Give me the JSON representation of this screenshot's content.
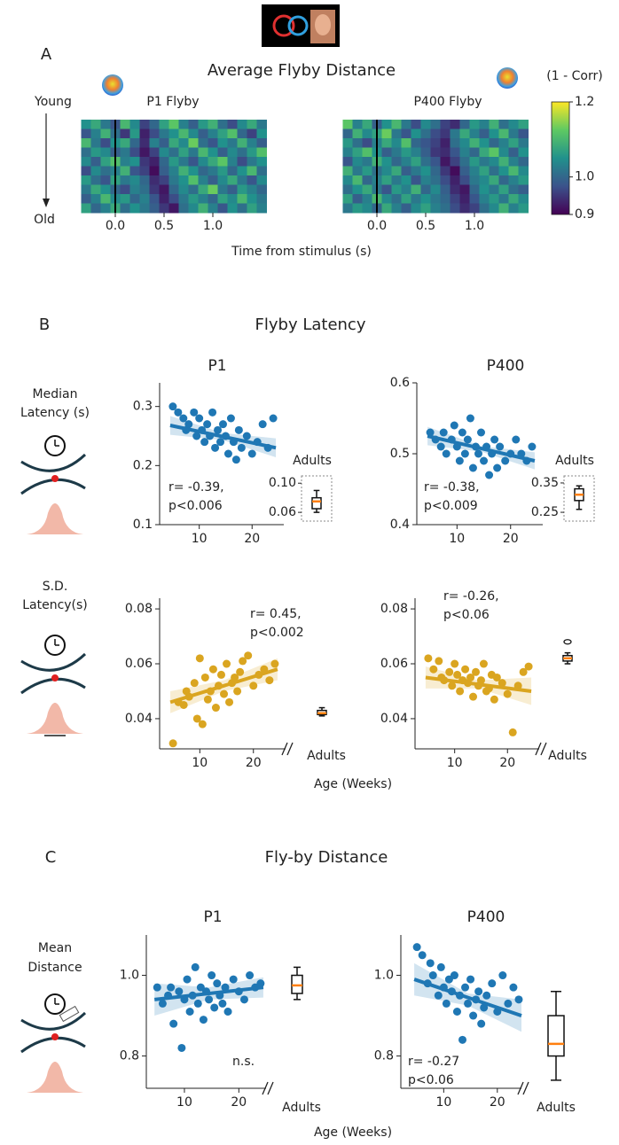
{
  "figure": {
    "panels": [
      {
        "letter": "A",
        "title": "Average  Flyby Distance",
        "xlabel": "Time from stimulus (s)"
      },
      {
        "letter": "B",
        "title": "Flyby Latency",
        "xlabel": "Age (Weeks)"
      },
      {
        "letter": "C",
        "title": "Fly-by Distance",
        "xlabel": "Age (Weeks)"
      }
    ],
    "row_labels": [
      [
        "Median",
        "Latency (s)"
      ],
      [
        "S.D.",
        "Latency(s)"
      ],
      [
        "Mean",
        "Distance"
      ]
    ]
  },
  "chart_data": [
    {
      "type": "heatmap",
      "title": "P1 Flyby",
      "row_label_top": "Young",
      "row_label_bottom": "Old",
      "x": [
        -0.3,
        -0.2,
        -0.1,
        0,
        0.1,
        0.2,
        0.3,
        0.4,
        0.5,
        0.6,
        0.7,
        0.8,
        0.9,
        1.0,
        1.1,
        1.2,
        1.3,
        1.4,
        1.5
      ],
      "xlim": [
        -0.35,
        1.55
      ],
      "xticks": [
        {
          "value": 0,
          "label": "0.0"
        },
        0.5,
        {
          "value": 1,
          "label": "1.0"
        }
      ],
      "vline": 0,
      "zlim": [
        0.9,
        1.2
      ],
      "z": [
        [
          1.05,
          1.08,
          1.02,
          0.98,
          1.1,
          1.04,
          0.96,
          1.0,
          1.07,
          1.12,
          1.03,
          0.99,
          1.06,
          1.09,
          1.01,
          0.97,
          1.04,
          1.08,
          1.02
        ],
        [
          0.98,
          1.03,
          1.09,
          1.01,
          0.95,
          1.06,
          0.93,
          0.97,
          1.02,
          1.05,
          1.1,
          1.04,
          0.99,
          1.03,
          1.07,
          1.11,
          1.0,
          0.96,
          1.05
        ],
        [
          1.1,
          1.02,
          0.97,
          1.05,
          1.08,
          1.0,
          0.94,
          1.03,
          0.99,
          1.08,
          1.04,
          1.13,
          1.01,
          0.98,
          1.05,
          1.02,
          1.09,
          1.03,
          0.99
        ],
        [
          1.01,
          1.06,
          1.04,
          0.99,
          1.02,
          0.97,
          0.92,
          0.96,
          1.04,
          1.01,
          1.07,
          1.02,
          1.1,
          1.05,
          0.99,
          1.04,
          1.01,
          1.06,
          1.11
        ],
        [
          1.04,
          0.99,
          1.07,
          1.11,
          1.03,
          1.05,
          0.95,
          0.93,
          1.0,
          1.06,
          1.02,
          0.98,
          1.04,
          1.08,
          1.12,
          1.03,
          0.97,
          1.02,
          1.05
        ],
        [
          0.97,
          1.04,
          1.01,
          1.03,
          1.09,
          0.98,
          0.96,
          0.91,
          0.99,
          1.03,
          1.09,
          1.05,
          1.0,
          1.02,
          1.06,
          1.0,
          1.05,
          1.1,
          1.01
        ],
        [
          1.06,
          1.01,
          0.98,
          1.07,
          1.02,
          1.04,
          1.0,
          0.94,
          0.96,
          1.02,
          1.05,
          1.11,
          1.03,
          0.99,
          1.04,
          1.08,
          1.02,
          0.98,
          1.04
        ],
        [
          1.02,
          1.08,
          1.05,
          1.0,
          0.97,
          1.03,
          1.01,
          0.95,
          0.92,
          1.0,
          1.04,
          1.01,
          1.08,
          1.13,
          1.02,
          0.99,
          1.06,
          1.03,
          1.0
        ],
        [
          0.99,
          1.03,
          1.1,
          1.04,
          1.06,
          1.0,
          1.03,
          0.98,
          0.93,
          0.97,
          1.02,
          1.06,
          1.03,
          1.0,
          1.07,
          1.04,
          1.1,
          1.05,
          1.02
        ],
        [
          1.07,
          1.0,
          1.03,
          1.08,
          1.01,
          1.05,
          1.02,
          0.99,
          0.95,
          0.92,
          1.01,
          1.04,
          1.09,
          1.03,
          0.98,
          1.05,
          1.01,
          1.07,
          1.03
        ]
      ]
    },
    {
      "type": "heatmap",
      "title": "P400 Flyby",
      "x": [
        -0.3,
        -0.2,
        -0.1,
        0,
        0.1,
        0.2,
        0.3,
        0.4,
        0.5,
        0.6,
        0.7,
        0.8,
        0.9,
        1.0,
        1.1,
        1.2,
        1.3,
        1.4,
        1.5
      ],
      "xlim": [
        -0.35,
        1.55
      ],
      "xticks": [
        {
          "value": 0,
          "label": "0.0"
        },
        0.5,
        {
          "value": 1,
          "label": "1.0"
        }
      ],
      "vline": 0,
      "zlim": [
        0.9,
        1.2
      ],
      "colorbar_label": "(1 - Corr)",
      "zticks": [
        0.9,
        {
          "value": 1,
          "label": "1.0"
        },
        1.2
      ],
      "z": [
        [
          1.12,
          1.03,
          1.08,
          0.99,
          1.05,
          1.1,
          1.02,
          0.97,
          1.04,
          1.01,
          0.96,
          0.94,
          1.0,
          1.06,
          1.03,
          1.09,
          1.01,
          1.04,
          1.07
        ],
        [
          1.0,
          1.09,
          1.04,
          1.07,
          1.13,
          1.02,
          0.98,
          1.05,
          1.01,
          0.97,
          0.95,
          1.02,
          1.08,
          1.03,
          0.99,
          1.05,
          1.1,
          1.02,
          0.98
        ],
        [
          1.06,
          1.01,
          0.97,
          1.03,
          1.08,
          1.04,
          1.11,
          1.0,
          0.98,
          0.96,
          0.93,
          1.01,
          1.04,
          1.09,
          1.05,
          1.0,
          1.03,
          1.07,
          1.02
        ],
        [
          1.03,
          1.07,
          1.11,
          1.05,
          0.99,
          1.02,
          1.06,
          1.03,
          0.99,
          0.95,
          0.94,
          0.98,
          1.03,
          1.0,
          1.08,
          1.12,
          1.04,
          0.99,
          1.05
        ],
        [
          0.98,
          1.04,
          1.02,
          1.09,
          1.05,
          1.0,
          1.03,
          1.07,
          1.01,
          0.98,
          0.92,
          0.96,
          1.01,
          1.06,
          1.02,
          1.04,
          1.09,
          1.03,
          1.0
        ],
        [
          1.09,
          1.02,
          1.06,
          1.01,
          1.04,
          1.08,
          0.99,
          1.02,
          1.05,
          1.0,
          0.95,
          0.91,
          0.99,
          1.03,
          1.07,
          1.01,
          1.05,
          1.1,
          1.04
        ],
        [
          1.04,
          1.1,
          1.0,
          1.03,
          1.07,
          1.02,
          1.05,
          0.98,
          1.03,
          1.01,
          0.97,
          0.93,
          0.97,
          1.02,
          1.04,
          1.08,
          1.0,
          1.03,
          1.06
        ],
        [
          1.01,
          1.05,
          1.08,
          1.02,
          0.98,
          1.06,
          1.03,
          1.09,
          1.0,
          1.04,
          0.99,
          0.94,
          0.92,
          1.0,
          1.05,
          1.02,
          1.07,
          1.01,
          0.99
        ],
        [
          1.07,
          0.99,
          1.03,
          1.1,
          1.04,
          1.01,
          1.07,
          1.02,
          1.05,
          1.02,
          1.0,
          0.96,
          0.93,
          0.98,
          1.03,
          1.06,
          1.02,
          1.08,
          1.04
        ],
        [
          1.02,
          1.06,
          1.04,
          1.0,
          1.08,
          1.03,
          0.99,
          1.04,
          1.07,
          1.03,
          1.01,
          0.97,
          0.94,
          0.96,
          1.01,
          1.04,
          1.09,
          1.03,
          1.06
        ]
      ]
    },
    {
      "type": "scatter",
      "title": "P1",
      "color": "#1f77b4",
      "x": [
        5,
        6,
        7,
        7.5,
        8,
        9,
        9.5,
        10,
        10.5,
        11,
        11.5,
        12,
        12.5,
        13,
        13.5,
        14,
        14.5,
        15,
        15.5,
        16,
        16.5,
        17,
        17.5,
        18,
        19,
        20,
        21,
        22,
        23,
        24
      ],
      "y": [
        0.3,
        0.29,
        0.28,
        0.26,
        0.27,
        0.29,
        0.25,
        0.28,
        0.26,
        0.24,
        0.27,
        0.25,
        0.29,
        0.23,
        0.26,
        0.24,
        0.27,
        0.25,
        0.22,
        0.28,
        0.24,
        0.21,
        0.26,
        0.23,
        0.25,
        0.22,
        0.24,
        0.27,
        0.23,
        0.28
      ],
      "fit": {
        "x": [
          4.5,
          24.5
        ],
        "y": [
          0.268,
          0.23
        ]
      },
      "ci": {
        "x": [
          4.5,
          14.5,
          24.5
        ],
        "lower": [
          0.252,
          0.243,
          0.214
        ],
        "upper": [
          0.284,
          0.255,
          0.246
        ]
      },
      "xlim": [
        2.5,
        26
      ],
      "ylim": [
        0.1,
        0.34
      ],
      "xticks": [
        10,
        20
      ],
      "yticks": [
        0.1,
        0.2,
        0.3
      ],
      "annotation": [
        "r= -0.39,",
        "p<0.006"
      ],
      "adults": {
        "label": "Adults",
        "min": 0.06,
        "q1": 0.065,
        "median": 0.075,
        "q3": 0.08,
        "max": 0.09,
        "outliers": []
      },
      "adults_ylim": [
        0.048,
        0.11
      ],
      "adults_yticks": [
        {
          "value": 0.1,
          "label": "0.10"
        },
        0.06
      ]
    },
    {
      "type": "scatter",
      "title": "P400",
      "color": "#1f77b4",
      "x": [
        5,
        6,
        7,
        7.5,
        8,
        9,
        9.5,
        10,
        10.5,
        11,
        11.5,
        12,
        12.5,
        13,
        13.5,
        14,
        14.5,
        15,
        15.5,
        16,
        16.5,
        17,
        17.5,
        18,
        19,
        20,
        21,
        22,
        23,
        24
      ],
      "y": [
        0.53,
        0.52,
        0.51,
        0.53,
        0.5,
        0.52,
        0.54,
        0.51,
        0.49,
        0.53,
        0.5,
        0.52,
        0.55,
        0.48,
        0.51,
        0.5,
        0.53,
        0.49,
        0.51,
        0.47,
        0.5,
        0.52,
        0.48,
        0.51,
        0.49,
        0.5,
        0.52,
        0.5,
        0.49,
        0.51
      ],
      "fit": {
        "x": [
          4.5,
          24.5
        ],
        "y": [
          0.525,
          0.49
        ]
      },
      "ci": {
        "x": [
          4.5,
          14.5,
          24.5
        ],
        "lower": [
          0.512,
          0.503,
          0.478
        ],
        "upper": [
          0.538,
          0.511,
          0.502
        ]
      },
      "xlim": [
        2.5,
        26
      ],
      "ylim": [
        0.4,
        0.6
      ],
      "xticks": [
        10,
        20
      ],
      "yticks": [
        0.4,
        0.5,
        0.6
      ],
      "annotation": [
        "r= -0.38,",
        "p<0.009"
      ],
      "adults": {
        "label": "Adults",
        "min": 0.26,
        "q1": 0.29,
        "median": 0.31,
        "q3": 0.33,
        "max": 0.34,
        "outliers": []
      },
      "adults_ylim": [
        0.22,
        0.374
      ],
      "adults_yticks": [
        0.35,
        0.25
      ]
    },
    {
      "type": "scatter",
      "color": "#daa520",
      "axis_break": true,
      "x": [
        5,
        6,
        7,
        7.5,
        8,
        9,
        9.5,
        10,
        10.5,
        11,
        11.5,
        12,
        12.5,
        13,
        13.5,
        14,
        14.5,
        15,
        15.5,
        16,
        16.5,
        17,
        17.5,
        18,
        19,
        20,
        21,
        22,
        23,
        24
      ],
      "y": [
        0.031,
        0.046,
        0.045,
        0.05,
        0.048,
        0.053,
        0.04,
        0.062,
        0.038,
        0.055,
        0.047,
        0.05,
        0.058,
        0.044,
        0.052,
        0.056,
        0.049,
        0.06,
        0.046,
        0.053,
        0.055,
        0.05,
        0.057,
        0.061,
        0.063,
        0.052,
        0.056,
        0.058,
        0.054,
        0.06
      ],
      "fit": {
        "x": [
          4.5,
          24.5
        ],
        "y": [
          0.046,
          0.058
        ]
      },
      "ci": {
        "x": [
          4.5,
          14.5,
          24.5
        ],
        "lower": [
          0.042,
          0.05,
          0.054
        ],
        "upper": [
          0.05,
          0.054,
          0.062
        ]
      },
      "xlim": [
        2.5,
        26
      ],
      "ylim": [
        0.029,
        0.0839
      ],
      "xticks": [
        10,
        20
      ],
      "yticks": [
        0.04,
        0.06,
        0.08
      ],
      "annotation": [
        "r= 0.45,",
        "p<0.002"
      ],
      "adults": {
        "label": "Adults",
        "min": 0.041,
        "q1": 0.0415,
        "median": 0.042,
        "q3": 0.043,
        "max": 0.044,
        "outliers": []
      }
    },
    {
      "type": "scatter",
      "color": "#daa520",
      "axis_break": true,
      "x": [
        5,
        6,
        7,
        7.5,
        8,
        9,
        9.5,
        10,
        10.5,
        11,
        11.5,
        12,
        12.5,
        13,
        13.5,
        14,
        14.5,
        15,
        15.5,
        16,
        16.5,
        17,
        17.5,
        18,
        19,
        20,
        21,
        22,
        23,
        24
      ],
      "y": [
        0.062,
        0.058,
        0.061,
        0.055,
        0.054,
        0.057,
        0.052,
        0.06,
        0.056,
        0.05,
        0.054,
        0.058,
        0.053,
        0.055,
        0.048,
        0.057,
        0.052,
        0.054,
        0.06,
        0.05,
        0.051,
        0.056,
        0.047,
        0.055,
        0.053,
        0.049,
        0.035,
        0.052,
        0.057,
        0.059
      ],
      "fit": {
        "x": [
          4.5,
          24.5
        ],
        "y": [
          0.055,
          0.05
        ]
      },
      "ci": {
        "x": [
          4.5,
          14.5,
          24.5
        ],
        "lower": [
          0.051,
          0.051,
          0.045
        ],
        "upper": [
          0.059,
          0.054,
          0.055
        ]
      },
      "xlim": [
        2.5,
        26
      ],
      "ylim": [
        0.029,
        0.0839
      ],
      "xticks": [
        10,
        20
      ],
      "yticks": [
        0.04,
        0.06,
        0.08
      ],
      "annotation": [
        "r= -0.26,",
        "p<0.06"
      ],
      "adults": {
        "label": "Adults",
        "min": 0.06,
        "q1": 0.061,
        "median": 0.062,
        "q3": 0.063,
        "max": 0.064,
        "outliers": [
          0.068
        ]
      }
    },
    {
      "type": "scatter",
      "title": "P1",
      "color": "#1f77b4",
      "axis_break": true,
      "x": [
        5,
        6,
        7,
        7.5,
        8,
        9,
        9.5,
        10,
        10.5,
        11,
        11.5,
        12,
        12.5,
        13,
        13.5,
        14,
        14.5,
        15,
        15.5,
        16,
        16.5,
        17,
        17.5,
        18,
        19,
        20,
        21,
        22,
        23,
        24
      ],
      "y": [
        0.97,
        0.93,
        0.95,
        0.97,
        0.88,
        0.96,
        0.82,
        0.94,
        0.99,
        0.91,
        0.95,
        1.02,
        0.93,
        0.97,
        0.89,
        0.96,
        0.94,
        1.0,
        0.92,
        0.98,
        0.95,
        0.93,
        0.97,
        0.91,
        0.99,
        0.96,
        0.94,
        1.0,
        0.97,
        0.98
      ],
      "fit": {
        "x": [
          4.5,
          24.5
        ],
        "y": [
          0.94,
          0.97
        ]
      },
      "ci": {
        "x": [
          4.5,
          14.5,
          24.5
        ],
        "lower": [
          0.9,
          0.94,
          0.945
        ],
        "upper": [
          0.98,
          0.97,
          0.995
        ]
      },
      "xlim": [
        3,
        25
      ],
      "ylim": [
        0.72,
        1.1
      ],
      "xticks": [
        10,
        20
      ],
      "yticks": [
        0.8,
        {
          "value": 1,
          "label": "1.0"
        }
      ],
      "annotation": [
        "n.s."
      ],
      "adults": {
        "label": "Adults",
        "min": 0.94,
        "q1": 0.955,
        "median": 0.975,
        "q3": 1.0,
        "max": 1.02,
        "outliers": []
      }
    },
    {
      "type": "scatter",
      "title": "P400",
      "color": "#1f77b4",
      "axis_break": true,
      "x": [
        5,
        6,
        7,
        7.5,
        8,
        9,
        9.5,
        10,
        10.5,
        11,
        11.5,
        12,
        12.5,
        13,
        13.5,
        14,
        14.5,
        15,
        15.5,
        16,
        16.5,
        17,
        17.5,
        18,
        19,
        20,
        21,
        22,
        23,
        24
      ],
      "y": [
        1.07,
        1.05,
        0.98,
        1.03,
        1.0,
        0.95,
        1.02,
        0.97,
        0.93,
        0.99,
        0.96,
        1.0,
        0.91,
        0.95,
        0.84,
        0.97,
        0.93,
        0.99,
        0.9,
        0.94,
        0.96,
        0.88,
        0.92,
        0.95,
        0.98,
        0.91,
        1.0,
        0.93,
        0.97,
        0.94
      ],
      "fit": {
        "x": [
          4.5,
          24.5
        ],
        "y": [
          0.99,
          0.9
        ]
      },
      "ci": {
        "x": [
          4.5,
          14.5,
          24.5
        ],
        "lower": [
          0.95,
          0.925,
          0.86
        ],
        "upper": [
          1.03,
          0.955,
          0.94
        ]
      },
      "xlim": [
        2,
        24.5
      ],
      "ylim": [
        0.72,
        1.1
      ],
      "xticks": [
        10,
        20
      ],
      "yticks": [
        0.8,
        {
          "value": 1,
          "label": "1.0"
        }
      ],
      "annotation": [
        "r= -0.27",
        "p<0.06"
      ],
      "adults": {
        "label": "Adults",
        "min": 0.74,
        "q1": 0.8,
        "median": 0.83,
        "q3": 0.9,
        "max": 0.96,
        "outliers": []
      }
    }
  ]
}
